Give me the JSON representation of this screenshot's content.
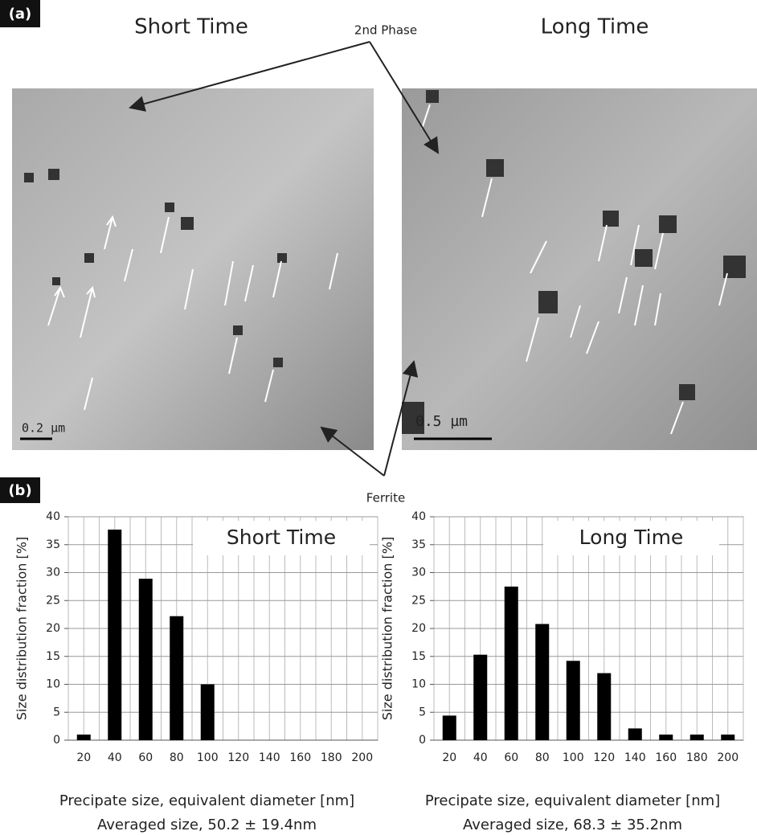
{
  "panel_a": {
    "label": "(a)",
    "left_title": "Short Time",
    "right_title": "Long Time",
    "second_phase": "2nd Phase",
    "ferrite": "Ferrite",
    "left_scale": "0.2 µm",
    "right_scale": "0.5 µm"
  },
  "panel_b": {
    "label": "(b)"
  },
  "chart_data": [
    {
      "type": "bar",
      "title": "Short Time",
      "subtitle": "Averaged size, 50.2 ± 19.4nm",
      "x_label": "Precipate size, equivalent diameter [nm]",
      "y_label": "Size distribution fraction [%]",
      "categories": [
        20,
        40,
        60,
        80,
        100,
        120,
        140,
        160,
        180,
        200
      ],
      "values": [
        1,
        37.7,
        28.9,
        22.2,
        10,
        0,
        0,
        0,
        0,
        0
      ],
      "color": "#000000",
      "ylim": [
        0,
        40
      ],
      "yticks": [
        0,
        5,
        10,
        15,
        20,
        25,
        30,
        35,
        40
      ],
      "grid": true
    },
    {
      "type": "bar",
      "title": "Long Time",
      "subtitle": "Averaged size, 68.3 ± 35.2nm",
      "x_label": "Precipate size, equivalent diameter [nm]",
      "y_label": "Size distribution fraction [%]",
      "categories": [
        20,
        40,
        60,
        80,
        100,
        120,
        140,
        160,
        180,
        200
      ],
      "values": [
        4.4,
        15.3,
        27.5,
        20.8,
        14.2,
        12,
        2.1,
        1,
        1,
        1
      ],
      "color": "#000000",
      "ylim": [
        0,
        40
      ],
      "yticks": [
        0,
        5,
        10,
        15,
        20,
        25,
        30,
        35,
        40
      ],
      "grid": true
    }
  ]
}
